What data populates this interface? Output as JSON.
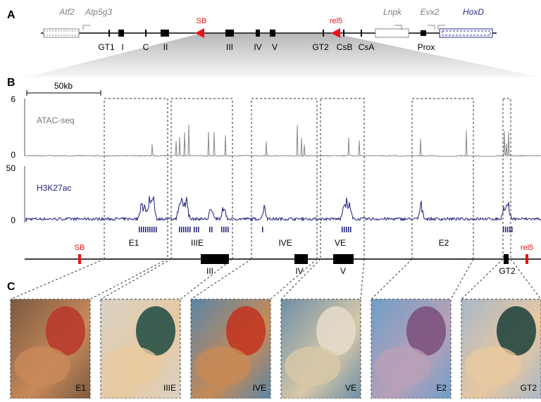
{
  "panel_labels": [
    "A",
    "B",
    "C"
  ],
  "locus": {
    "genes": [
      "Atf2",
      "Atp5g3",
      "Lnpk",
      "Evx2",
      "HoxD"
    ],
    "sb": "SB",
    "rel5": "rel5",
    "elements": [
      "GT1",
      "I",
      "C",
      "II",
      "III",
      "IV",
      "V",
      "GT2",
      "CsB",
      "CsA",
      "Prox"
    ]
  },
  "tracks": {
    "scale": "50kb",
    "atac": {
      "name": "ATAC-seq",
      "max": 6,
      "min": 0
    },
    "h3k27ac": {
      "name": "H3K27ac",
      "max": 50,
      "min": 0
    }
  },
  "regions": [
    "E1",
    "IIIE",
    "IVE",
    "VE",
    "E2"
  ],
  "zoom": {
    "sb": "SB",
    "rel5": "rel5",
    "elements": [
      "III",
      "IV",
      "V",
      "GT2"
    ]
  },
  "embryos": [
    "E1",
    "IIIE",
    "IVE",
    "VE",
    "E2",
    "GT2"
  ]
}
